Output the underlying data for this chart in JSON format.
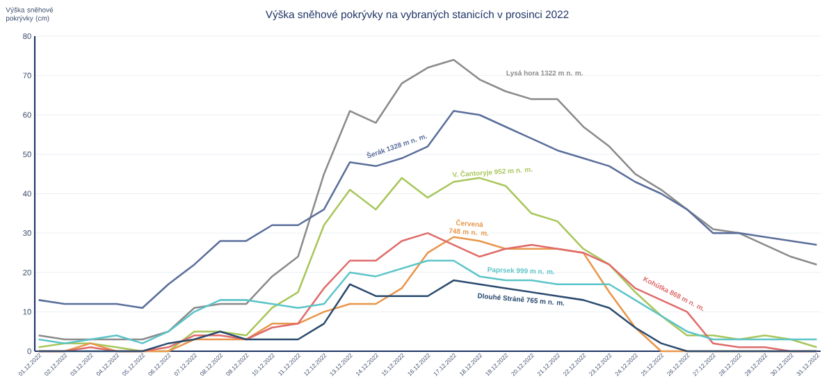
{
  "chart_data": {
    "type": "line",
    "title": "Výška sněhové pokrývky na vybraných stanicích v prosinci 2022",
    "annotations": [
      "Výška sněhové pokrývky (cm)"
    ],
    "categories": [
      "01.12.2022",
      "02.12.2022",
      "03.12.2022",
      "04.12.2022",
      "05.12.2022",
      "06.12.2022",
      "07.12.2022",
      "08.12.2022",
      "09.12.2022",
      "10.12.2022",
      "11.12.2022",
      "12.12.2022",
      "13.12.2022",
      "14.12.2022",
      "15.12.2022",
      "16.12.2022",
      "17.12.2022",
      "18.12.2022",
      "19.12.2022",
      "20.12.2022",
      "21.12.2022",
      "22.12.2022",
      "23.12.2022",
      "24.12.2022",
      "25.12.2022",
      "26.12.2022",
      "27.12.2022",
      "28.12.2022",
      "29.12.2022",
      "30.12.2022",
      "31.12.2022"
    ],
    "series": [
      {
        "name": "Lysá hora 1322 m n. m.",
        "color": "#8a8a8a",
        "values": [
          4,
          3,
          3,
          3,
          3,
          5,
          11,
          12,
          12,
          19,
          24,
          45,
          61,
          58,
          68,
          72,
          74,
          69,
          66,
          64,
          64,
          57,
          52,
          45,
          41,
          36,
          31,
          30,
          27,
          24,
          22
        ]
      },
      {
        "name": "Šerák 1328 m n. m.",
        "color": "#5a6e9a",
        "values": [
          13,
          12,
          12,
          12,
          11,
          17,
          22,
          28,
          28,
          32,
          32,
          36,
          48,
          47,
          49,
          52,
          61,
          60,
          57,
          54,
          51,
          49,
          47,
          43,
          40,
          36,
          30,
          30,
          29,
          28,
          27
        ]
      },
      {
        "name": "V. Čantoryje 952 m n. m.",
        "color": "#a8c65a",
        "values": [
          1,
          2,
          2,
          1,
          0,
          0,
          5,
          5,
          4,
          11,
          15,
          32,
          41,
          36,
          44,
          39,
          43,
          44,
          42,
          35,
          33,
          26,
          22,
          15,
          9,
          4,
          4,
          3,
          4,
          3,
          1
        ]
      },
      {
        "name": "Červená 748 m n. m.",
        "color": "#e8964a",
        "values": [
          0,
          0,
          2,
          0,
          0,
          0,
          3,
          3,
          3,
          7,
          7,
          10,
          12,
          12,
          16,
          25,
          29,
          28,
          26,
          26,
          26,
          25,
          15,
          6,
          0,
          0,
          0,
          0,
          0,
          0,
          0
        ]
      },
      {
        "name": "Kohútka 868 m n. m.",
        "color": "#e06a6a",
        "values": [
          0,
          0,
          1,
          0,
          0,
          1,
          4,
          4,
          3,
          6,
          7,
          16,
          23,
          23,
          28,
          30,
          27,
          24,
          26,
          27,
          26,
          25,
          22,
          16,
          13,
          10,
          2,
          1,
          1,
          0,
          0
        ]
      },
      {
        "name": "Paprsek 999 m n. m.",
        "color": "#5bc4c8",
        "values": [
          3,
          2,
          3,
          4,
          2,
          5,
          10,
          13,
          13,
          12,
          11,
          12,
          20,
          19,
          21,
          23,
          23,
          19,
          18,
          18,
          17,
          17,
          17,
          13,
          9,
          5,
          3,
          3,
          3,
          3,
          3
        ]
      },
      {
        "name": "Dlouhé Stráně 765 m n. m.",
        "color": "#2a4a6e",
        "values": [
          0,
          0,
          0,
          0,
          0,
          2,
          3,
          5,
          3,
          3,
          3,
          7,
          17,
          14,
          14,
          14,
          18,
          17,
          16,
          15,
          14,
          13,
          11,
          6,
          2,
          0,
          0,
          0,
          0,
          0,
          0
        ]
      }
    ],
    "ylim": [
      0,
      80
    ],
    "yticks": [
      0,
      10,
      20,
      30,
      40,
      50,
      60,
      70,
      80
    ],
    "grid": "y",
    "legend": false,
    "marker": "none",
    "line_style": "solid"
  }
}
